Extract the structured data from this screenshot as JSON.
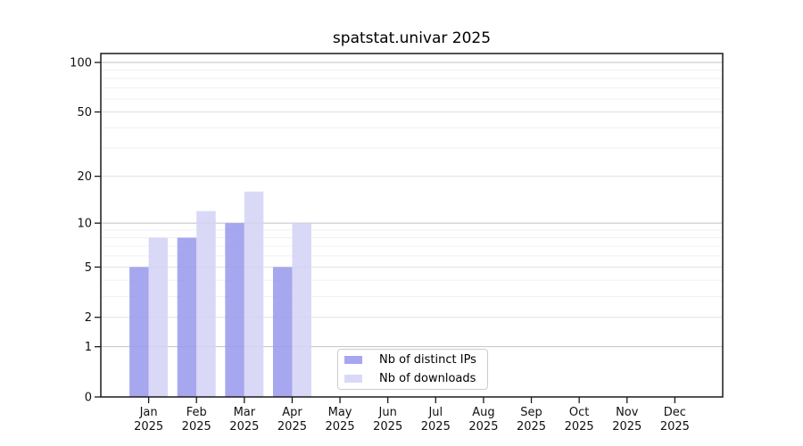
{
  "chart_data": {
    "type": "bar",
    "title": "spatstat.univar 2025",
    "categories": [
      "Jan",
      "Feb",
      "Mar",
      "Apr",
      "May",
      "Jun",
      "Jul",
      "Aug",
      "Sep",
      "Oct",
      "Nov",
      "Dec"
    ],
    "year": "2025",
    "series": [
      {
        "name": "Nb of distinct IPs",
        "color": "#a7a7ef",
        "values": [
          5,
          8,
          10,
          5,
          null,
          null,
          null,
          null,
          null,
          null,
          null,
          null
        ]
      },
      {
        "name": "Nb of downloads",
        "color": "#d9d9f7",
        "values": [
          8,
          12,
          16,
          10,
          null,
          null,
          null,
          null,
          null,
          null,
          null,
          null
        ]
      }
    ],
    "xlabel": "",
    "ylabel": "",
    "y_scale": "log1p",
    "ylim": [
      0,
      100
    ],
    "y_major_ticks": [
      0,
      1,
      2,
      5,
      10,
      20,
      50,
      100
    ],
    "y_minor_gridlines": [
      3,
      4,
      6,
      7,
      8,
      9,
      30,
      40,
      60,
      70,
      80,
      90
    ],
    "grid": true,
    "legend_position": "lower-center-inside",
    "colors": {
      "decade_gridline": "#c2c2c2",
      "major_gridline": "#e0e0e0",
      "minor_gridline": "#f0f0f0",
      "axis": "#1a1a1a",
      "text": "#000000"
    }
  }
}
